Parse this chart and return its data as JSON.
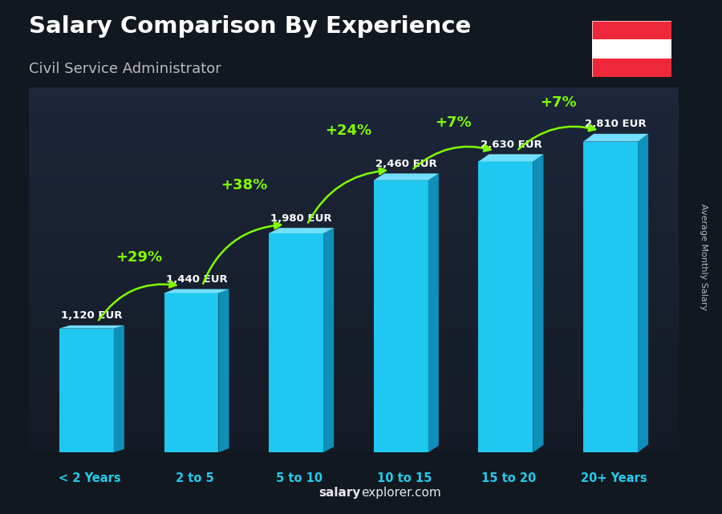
{
  "title": "Salary Comparison By Experience",
  "subtitle": "Civil Service Administrator",
  "ylabel": "Average Monthly Salary",
  "watermark_salary": "salary",
  "watermark_rest": "explorer.com",
  "categories": [
    "< 2 Years",
    "2 to 5",
    "5 to 10",
    "10 to 15",
    "15 to 20",
    "20+ Years"
  ],
  "values": [
    1120,
    1440,
    1980,
    2460,
    2630,
    2810
  ],
  "pct_changes": [
    "+29%",
    "+38%",
    "+24%",
    "+7%",
    "+7%"
  ],
  "bar_color_front": "#1EC8F0",
  "bar_color_top": "#72DFFE",
  "bar_color_side": "#0E90BB",
  "arrow_color": "#80FF00",
  "pct_color": "#80FF00",
  "value_color": "#FFFFFF",
  "title_color": "#FFFFFF",
  "subtitle_color": "#BBBBBB",
  "axis_label_color": "#22CCEE",
  "bg_top_color": "#2a3a4a",
  "bg_bottom_color": "#0a1015",
  "figsize": [
    9.0,
    6.41
  ],
  "dpi": 100,
  "austria_flag_colors": [
    "#ED2939",
    "#FFFFFF",
    "#ED2939"
  ]
}
